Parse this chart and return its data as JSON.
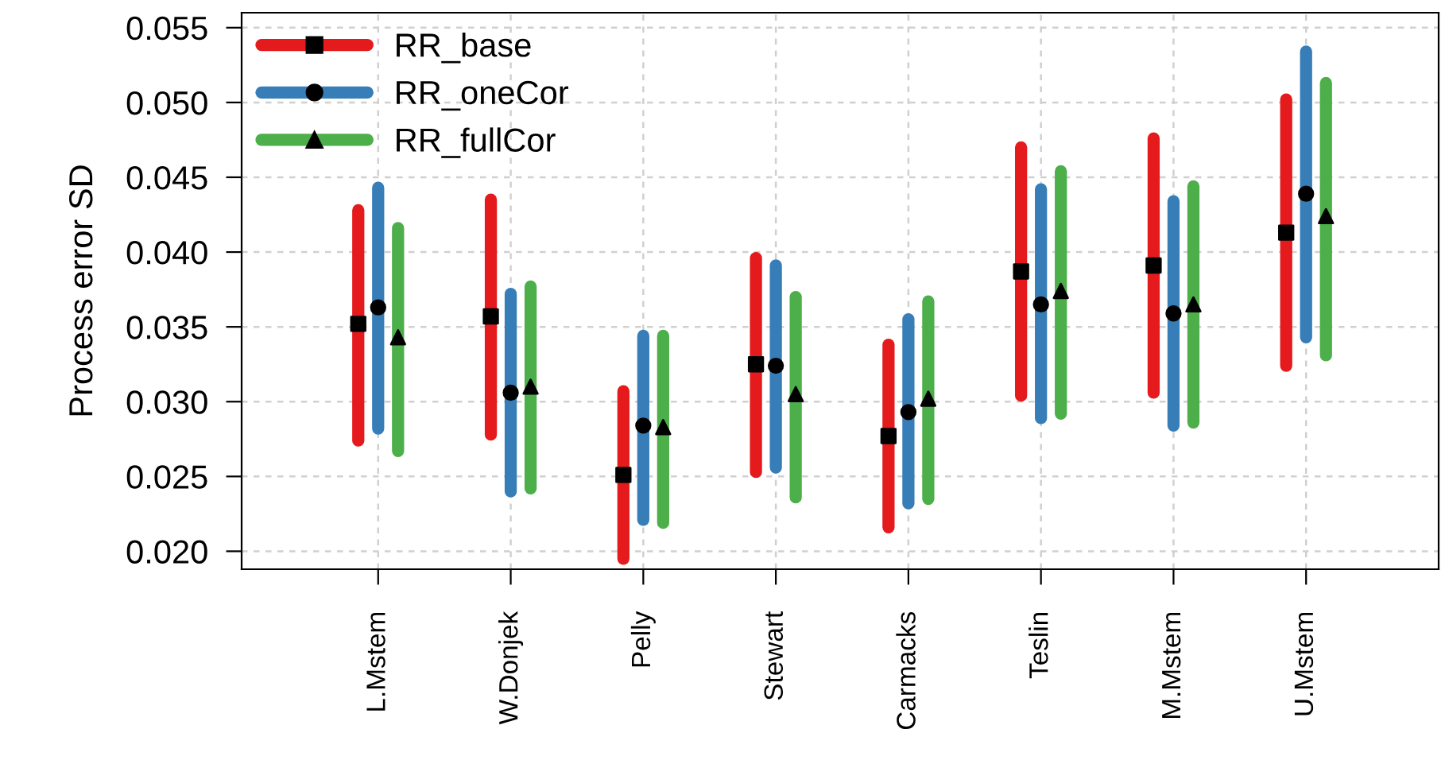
{
  "chart_data": {
    "type": "scatter",
    "ylabel": "Process error SD",
    "categories": [
      "L.Mstem",
      "W.Donjek",
      "Pelly",
      "Stewart",
      "Carmacks",
      "Teslin",
      "M.Mstem",
      "U.Mstem"
    ],
    "series": [
      {
        "name": "RR_base",
        "color": "#e41a1c",
        "marker": "square",
        "colors": [
          "#000000",
          "#000000",
          "#000000",
          "#000000",
          "#000000",
          "#000000",
          "#000000",
          "#000000"
        ],
        "values": [
          0.0352,
          0.0357,
          0.0251,
          0.0325,
          0.0277,
          0.0387,
          0.0391,
          0.0413
        ],
        "errors": [
          [
            0.0274,
            0.0428
          ],
          [
            0.0278,
            0.0435
          ],
          [
            0.0195,
            0.0307
          ],
          [
            0.0253,
            0.0396
          ],
          [
            0.0216,
            0.0338
          ],
          [
            0.0304,
            0.047
          ],
          [
            0.0306,
            0.0476
          ],
          [
            0.0324,
            0.0502
          ]
        ]
      },
      {
        "name": "RR_oneCor",
        "color": "#377eb8",
        "marker": "circle",
        "colors": [
          "#000000",
          "#000000",
          "#000000",
          "#000000",
          "#000000",
          "#000000",
          "#000000",
          "#000000"
        ],
        "values": [
          0.0363,
          0.0306,
          0.0284,
          0.0324,
          0.0293,
          0.0365,
          0.0359,
          0.0439
        ],
        "errors": [
          [
            0.0282,
            0.0443
          ],
          [
            0.024,
            0.0372
          ],
          [
            0.0221,
            0.0344
          ],
          [
            0.0256,
            0.0391
          ],
          [
            0.0232,
            0.0355
          ],
          [
            0.0289,
            0.0442
          ],
          [
            0.0284,
            0.0434
          ],
          [
            0.0343,
            0.0534
          ]
        ]
      },
      {
        "name": "RR_fullCor",
        "color": "#4daf4a",
        "marker": "triangle",
        "colors": [
          "#000000",
          "#000000",
          "#000000",
          "#000000",
          "#000000",
          "#000000",
          "#000000",
          "#000000"
        ],
        "values": [
          0.0343,
          0.031,
          0.0283,
          0.0305,
          0.0302,
          0.0374,
          0.0365,
          0.0424
        ],
        "errors": [
          [
            0.0267,
            0.0416
          ],
          [
            0.0242,
            0.0377
          ],
          [
            0.0219,
            0.0344
          ],
          [
            0.0236,
            0.037
          ],
          [
            0.0235,
            0.0367
          ],
          [
            0.0292,
            0.0454
          ],
          [
            0.0286,
            0.0444
          ],
          [
            0.0331,
            0.0513
          ]
        ]
      }
    ],
    "ylim": [
      0.0188,
      0.056
    ],
    "yticks": [
      {
        "value": 0.02,
        "label": "0.020"
      },
      {
        "value": 0.025,
        "label": "0.025"
      },
      {
        "value": 0.03,
        "label": "0.030"
      },
      {
        "value": 0.035,
        "label": "0.035"
      },
      {
        "value": 0.04,
        "label": "0.040"
      },
      {
        "value": 0.045,
        "label": "0.045"
      },
      {
        "value": 0.05,
        "label": "0.050"
      },
      {
        "value": 0.055,
        "label": "0.055"
      }
    ],
    "grid": true,
    "legend": "top left"
  }
}
